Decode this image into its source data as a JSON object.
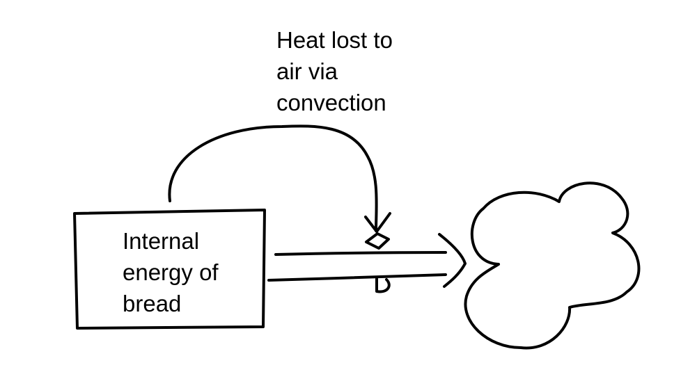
{
  "diagram": {
    "stock": {
      "label": "Internal\nenergy of\nbread"
    },
    "flow": {
      "label": "Heat lost to\nair via\nconvection"
    },
    "sink": {
      "shape": "cloud"
    },
    "ink_color": "#000000",
    "background_color": "#ffffff"
  }
}
